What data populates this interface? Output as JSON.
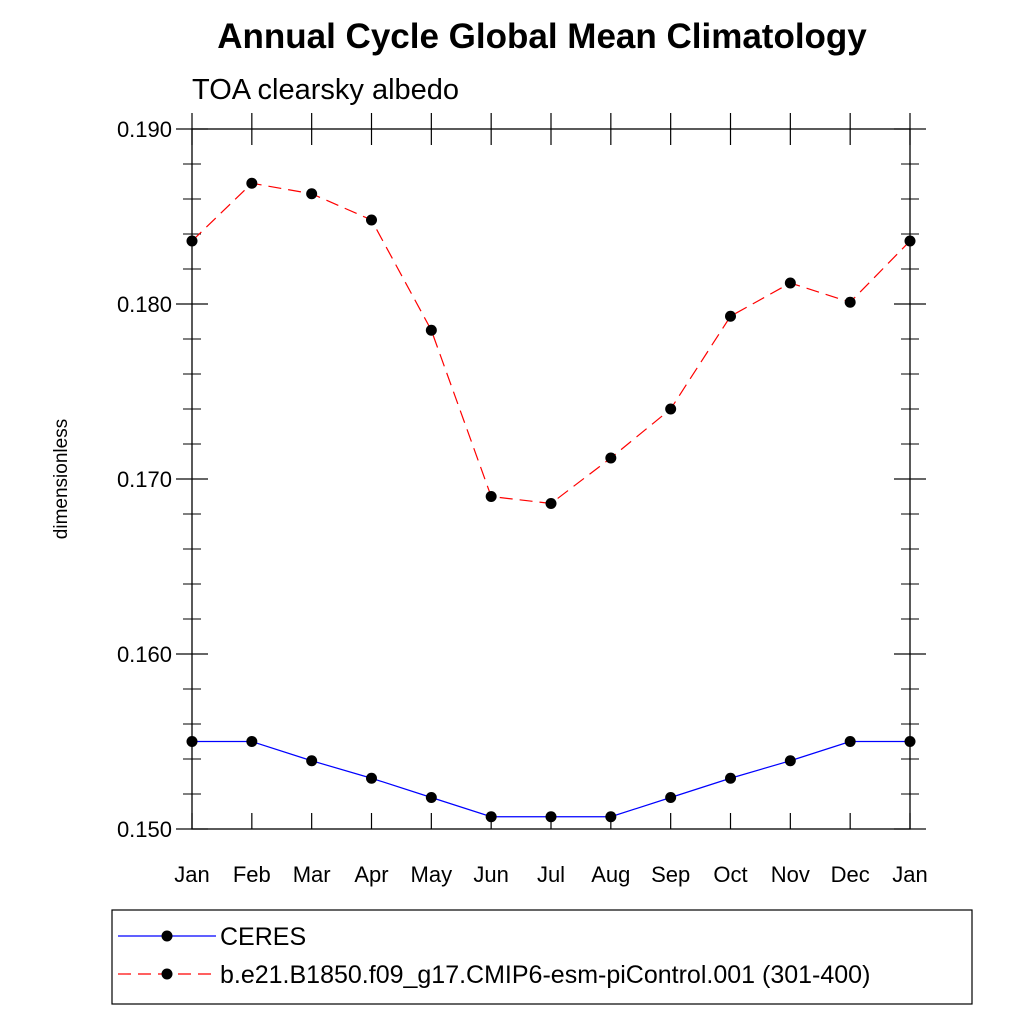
{
  "chart_data": {
    "type": "line",
    "title": "Annual Cycle Global Mean Climatology",
    "subtitle": "TOA clearsky albedo",
    "xlabel": "",
    "ylabel": "dimensionless",
    "categories": [
      "Jan",
      "Feb",
      "Mar",
      "Apr",
      "May",
      "Jun",
      "Jul",
      "Aug",
      "Sep",
      "Oct",
      "Nov",
      "Dec",
      "Jan"
    ],
    "ylim": [
      0.15,
      0.19
    ],
    "yticks": [
      "0.150",
      "0.160",
      "0.170",
      "0.180",
      "0.190"
    ],
    "grid": false,
    "legend_position": "bottom",
    "series": [
      {
        "name": "CERES",
        "color": "#0000ff",
        "line_style": "solid",
        "marker": "filled-circle",
        "values": [
          0.155,
          0.155,
          0.1539,
          0.1529,
          0.1518,
          0.1507,
          0.1507,
          0.1507,
          0.1518,
          0.1529,
          0.1539,
          0.155,
          0.155
        ]
      },
      {
        "name": "b.e21.B1850.f09_g17.CMIP6-esm-piControl.001 (301-400)",
        "color": "#ff0000",
        "line_style": "dashed",
        "marker": "filled-circle",
        "values": [
          0.1836,
          0.1869,
          0.1863,
          0.1848,
          0.1785,
          0.169,
          0.1686,
          0.1712,
          0.174,
          0.1793,
          0.1812,
          0.1801,
          0.1836
        ]
      }
    ]
  }
}
